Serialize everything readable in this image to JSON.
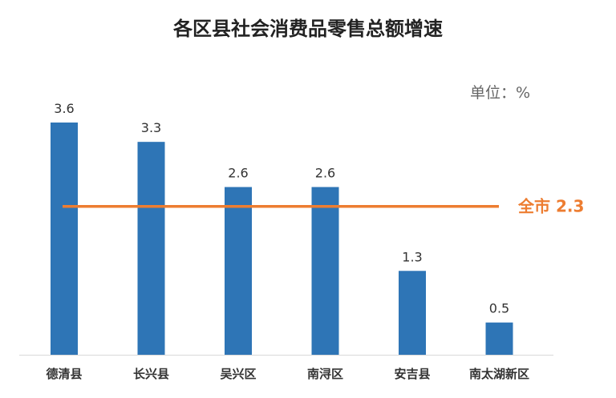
{
  "chart_data": {
    "type": "bar",
    "title": "各区县社会消费品零售总额增速",
    "unit": "单位：%",
    "categories": [
      "德清县",
      "长兴县",
      "吴兴区",
      "南浔区",
      "安吉县",
      "南太湖新区"
    ],
    "values": [
      3.6,
      3.3,
      2.6,
      2.6,
      1.3,
      0.5
    ],
    "value_labels": [
      "3.6",
      "3.3",
      "2.6",
      "2.6",
      "1.3",
      "0.5"
    ],
    "reference_line": {
      "label": "全市 2.3",
      "value": 2.3
    },
    "ylim": [
      0,
      3.6
    ],
    "grid": false,
    "legend": "none",
    "colors": {
      "bar": "#2E75B6",
      "reference": "#ED7D31",
      "axis": "#D9D9D9",
      "text": "#333333"
    }
  }
}
